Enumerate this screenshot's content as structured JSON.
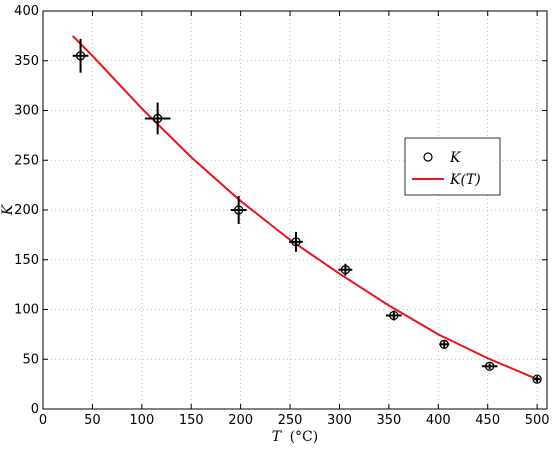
{
  "chart_data": {
    "type": "scatter",
    "xlabel_var": "T",
    "xlabel_unit": "(°C)",
    "ylabel": "K",
    "xlim": [
      0,
      510
    ],
    "ylim": [
      0,
      400
    ],
    "xticks": [
      0,
      50,
      100,
      150,
      200,
      250,
      300,
      350,
      400,
      450,
      500
    ],
    "yticks": [
      0,
      50,
      100,
      150,
      200,
      250,
      300,
      350,
      400
    ],
    "grid": true,
    "legend_position": "right-center",
    "series": [
      {
        "name": "K",
        "kind": "scatter",
        "marker": "open-circle",
        "color": "#000000",
        "points": [
          {
            "x": 38,
            "y": 355,
            "xerr": 8,
            "yerr": 17
          },
          {
            "x": 116,
            "y": 292,
            "xerr": 13,
            "yerr": 16
          },
          {
            "x": 198,
            "y": 200,
            "xerr": 8,
            "yerr": 14
          },
          {
            "x": 256,
            "y": 168,
            "xerr": 7,
            "yerr": 10
          },
          {
            "x": 306,
            "y": 140,
            "xerr": 7,
            "yerr": 6
          },
          {
            "x": 355,
            "y": 94,
            "xerr": 8,
            "yerr": 5
          },
          {
            "x": 406,
            "y": 65,
            "xerr": 5,
            "yerr": 4
          },
          {
            "x": 452,
            "y": 43,
            "xerr": 8,
            "yerr": 3
          },
          {
            "x": 500,
            "y": 30,
            "xerr": 3,
            "yerr": 3
          }
        ]
      },
      {
        "name": "K(T)",
        "kind": "line",
        "color": "#e8141e",
        "x": [
          30,
          50,
          100,
          150,
          200,
          250,
          300,
          350,
          400,
          450,
          500
        ],
        "y": [
          375,
          355,
          302,
          253,
          209,
          170,
          136,
          104,
          75,
          51,
          30
        ]
      }
    ]
  }
}
